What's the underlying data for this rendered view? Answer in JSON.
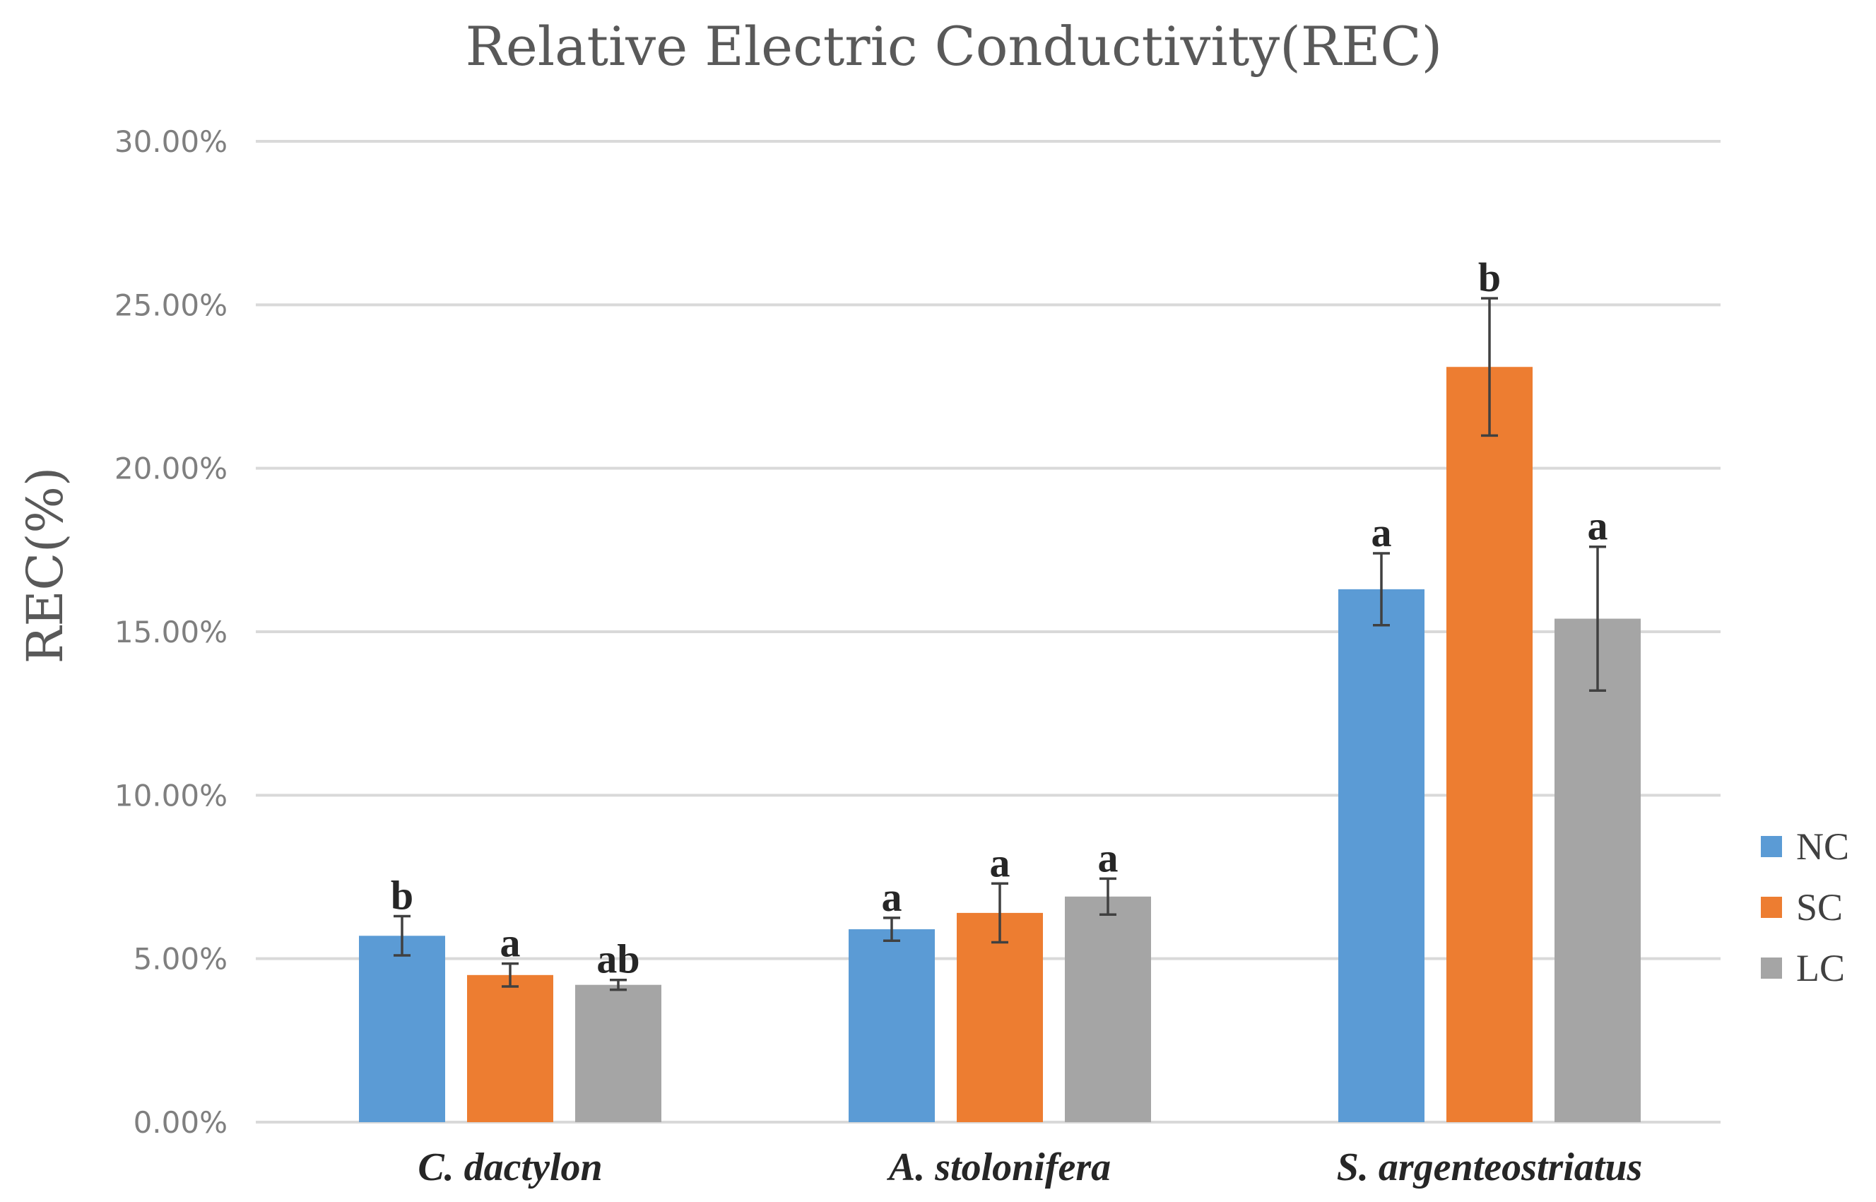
{
  "chart_data": {
    "type": "bar",
    "title": "Relative Electric Conductivity(REC)",
    "xlabel": "",
    "ylabel": "REC(%)",
    "ylim": [
      0,
      30
    ],
    "yticks": [
      0,
      5,
      10,
      15,
      20,
      25,
      30
    ],
    "ytick_labels": [
      "0.00%",
      "5.00%",
      "10.00%",
      "15.00%",
      "20.00%",
      "25.00%",
      "30.00%"
    ],
    "categories": [
      "C. dactylon",
      "A. stolonifera",
      "S. argenteostriatus"
    ],
    "series": [
      {
        "name": "NC",
        "color": "#5b9bd5",
        "values": [
          5.7,
          5.9,
          16.3
        ],
        "errors": [
          0.6,
          0.35,
          1.1
        ],
        "labels": [
          "b",
          "a",
          "a"
        ]
      },
      {
        "name": "SC",
        "color": "#ed7d31",
        "values": [
          4.5,
          6.4,
          23.1
        ],
        "errors": [
          0.35,
          0.9,
          2.1
        ],
        "labels": [
          "a",
          "a",
          "b"
        ]
      },
      {
        "name": "LC",
        "color": "#a5a5a5",
        "values": [
          4.2,
          6.9,
          15.4
        ],
        "errors": [
          0.15,
          0.55,
          2.2
        ],
        "labels": [
          "ab",
          "a",
          "a"
        ]
      }
    ],
    "grid": true,
    "legend_position": "right"
  }
}
